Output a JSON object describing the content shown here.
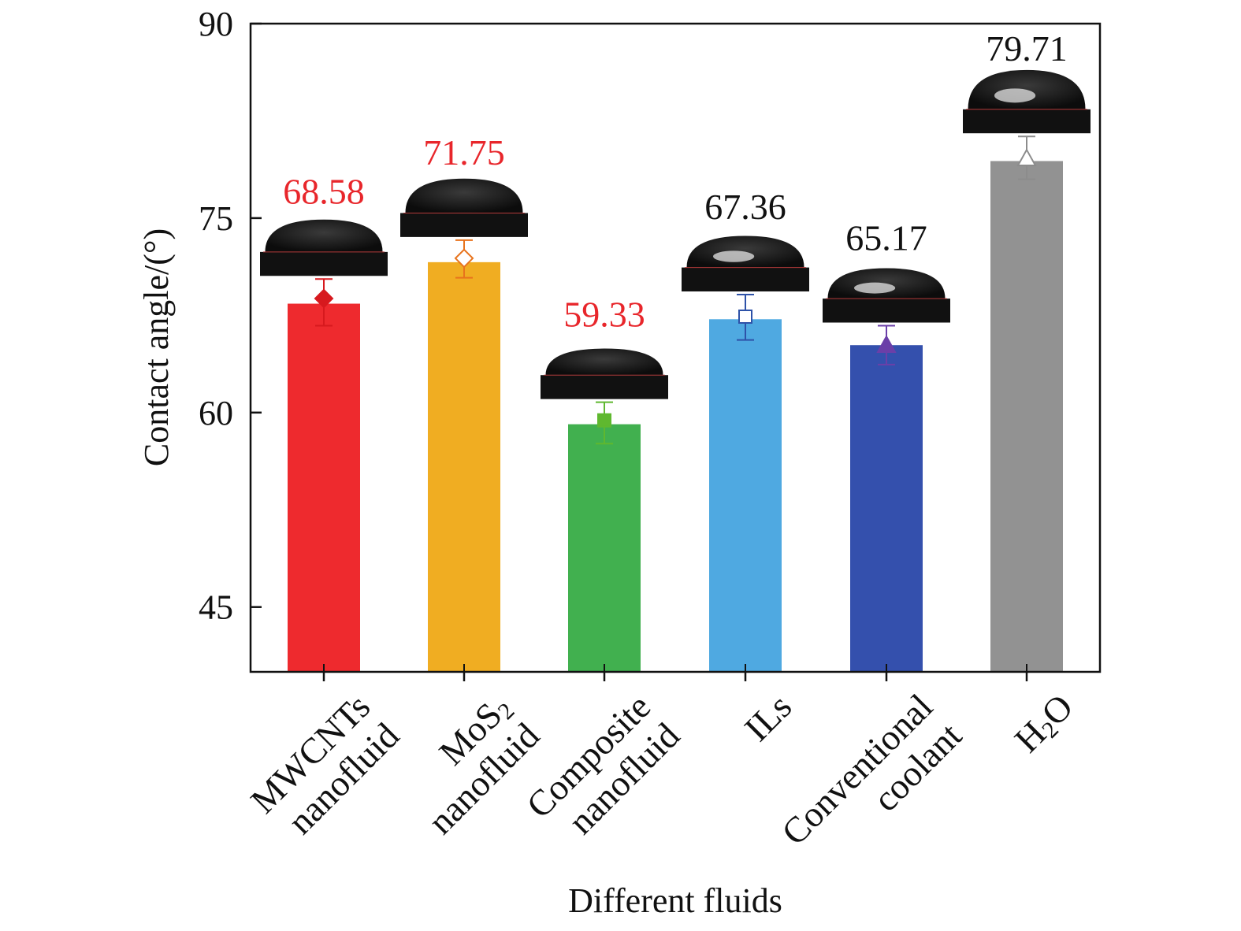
{
  "chart_data": {
    "type": "bar",
    "title": "",
    "xlabel": "Different fluids",
    "ylabel": "Contact angle/(°)",
    "ylim": [
      40,
      90
    ],
    "yticks": [
      45,
      60,
      75,
      90
    ],
    "grid": false,
    "categories": [
      {
        "lines": [
          [
            {
              "t": "MWCNTs"
            }
          ],
          [
            {
              "t": "nanofluid"
            }
          ]
        ]
      },
      {
        "lines": [
          [
            {
              "t": "MoS"
            },
            {
              "t": "2",
              "sub": true
            }
          ],
          [
            {
              "t": "nanofluid"
            }
          ]
        ]
      },
      {
        "lines": [
          [
            {
              "t": "Composite"
            }
          ],
          [
            {
              "t": "nanofluid"
            }
          ]
        ]
      },
      {
        "lines": [
          [
            {
              "t": "ILs"
            }
          ]
        ]
      },
      {
        "lines": [
          [
            {
              "t": "Conventional"
            }
          ],
          [
            {
              "t": "coolant"
            }
          ]
        ]
      },
      {
        "lines": [
          [
            {
              "t": "H"
            },
            {
              "t": "2",
              "sub": true
            },
            {
              "t": "O"
            }
          ]
        ]
      }
    ],
    "values": [
      68.4,
      71.6,
      59.1,
      67.2,
      65.2,
      79.4
    ],
    "marker_values": [
      68.8,
      71.9,
      59.4,
      67.4,
      65.2,
      79.6
    ],
    "error_upper": [
      70.3,
      73.3,
      60.8,
      69.1,
      66.7,
      81.3
    ],
    "error_lower": [
      66.7,
      70.4,
      57.6,
      65.6,
      63.7,
      78.0
    ],
    "markers": [
      "diamond-filled",
      "diamond-open",
      "square-filled",
      "square-open",
      "triangle-filled",
      "triangle-open"
    ],
    "bar_colors": [
      "#ee2a2e",
      "#f0ad22",
      "#41b04f",
      "#4fa9e1",
      "#3450ad",
      "#929292"
    ],
    "marker_colors": [
      "#d7191e",
      "#e8731c",
      "#5fb82f",
      "#2e52a8",
      "#6b3fa8",
      "#8c8c8c"
    ],
    "annotations": [
      "68.58",
      "71.75",
      "59.33",
      "67.36",
      "65.17",
      "79.71"
    ],
    "annotation_colors": [
      "#e8262b",
      "#e8262b",
      "#e8262b",
      "#111111",
      "#111111",
      "#111111"
    ],
    "droplet_images": [
      "droplet",
      "droplet",
      "droplet",
      "droplet",
      "droplet",
      "droplet"
    ]
  }
}
